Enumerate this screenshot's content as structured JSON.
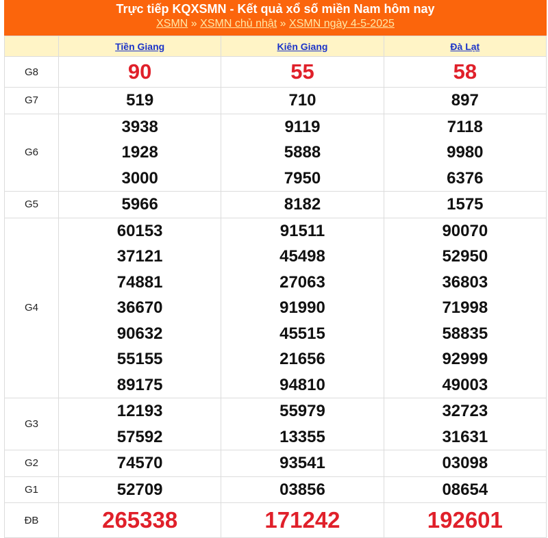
{
  "header": {
    "title": "Trực tiếp KQXSMN - Kết quả xổ số miền Nam hôm nay",
    "breadcrumb": [
      "XSMN",
      "XSMN chủ nhật",
      "XSMN ngày 4-5-2025"
    ],
    "separator": "»"
  },
  "provinces": [
    "Tiền Giang",
    "Kiên Giang",
    "Đà Lạt"
  ],
  "colors": {
    "header_bg": "#fb650c",
    "column_header_bg": "#fff4c6",
    "link": "#1a33c8",
    "highlight": "#e0202a"
  },
  "prizes": [
    {
      "label": "G8",
      "results": [
        [
          "90"
        ],
        [
          "55"
        ],
        [
          "58"
        ]
      ]
    },
    {
      "label": "G7",
      "results": [
        [
          "519"
        ],
        [
          "710"
        ],
        [
          "897"
        ]
      ]
    },
    {
      "label": "G6",
      "results": [
        [
          "3938",
          "1928",
          "3000"
        ],
        [
          "9119",
          "5888",
          "7950"
        ],
        [
          "7118",
          "9980",
          "6376"
        ]
      ]
    },
    {
      "label": "G5",
      "results": [
        [
          "5966"
        ],
        [
          "8182"
        ],
        [
          "1575"
        ]
      ]
    },
    {
      "label": "G4",
      "results": [
        [
          "60153",
          "37121",
          "74881",
          "36670",
          "90632",
          "55155",
          "89175"
        ],
        [
          "91511",
          "45498",
          "27063",
          "91990",
          "45515",
          "21656",
          "94810"
        ],
        [
          "90070",
          "52950",
          "36803",
          "71998",
          "58835",
          "92999",
          "49003"
        ]
      ]
    },
    {
      "label": "G3",
      "results": [
        [
          "12193",
          "57592"
        ],
        [
          "55979",
          "13355"
        ],
        [
          "32723",
          "31631"
        ]
      ]
    },
    {
      "label": "G2",
      "results": [
        [
          "74570"
        ],
        [
          "93541"
        ],
        [
          "03098"
        ]
      ]
    },
    {
      "label": "G1",
      "results": [
        [
          "52709"
        ],
        [
          "03856"
        ],
        [
          "08654"
        ]
      ]
    },
    {
      "label": "ĐB",
      "results": [
        [
          "265338"
        ],
        [
          "171242"
        ],
        [
          "192601"
        ]
      ]
    }
  ]
}
